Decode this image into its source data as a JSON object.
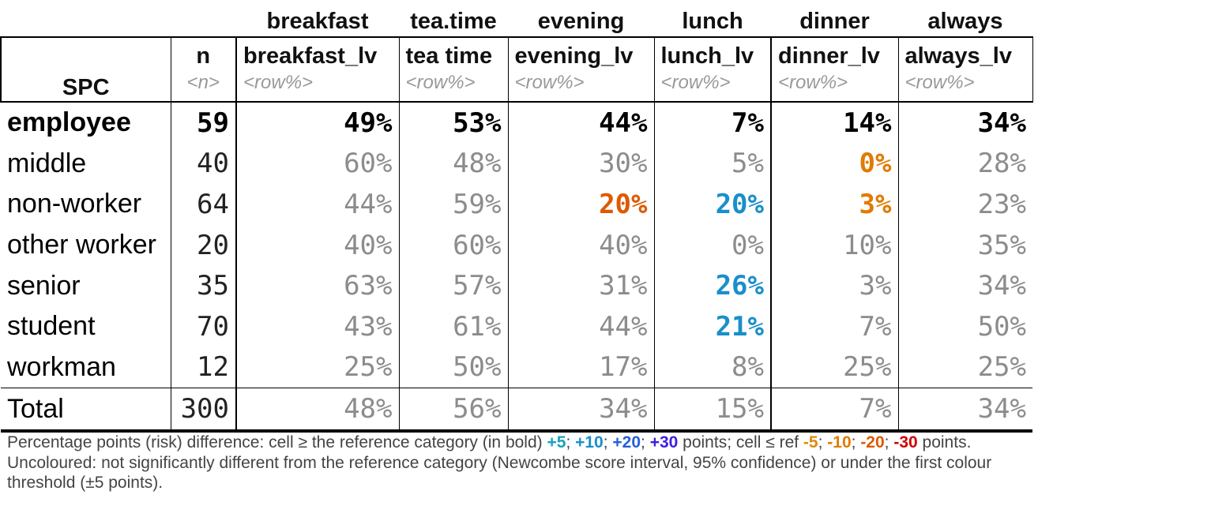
{
  "spanners": [
    "breakfast",
    "tea.time",
    "evening",
    "lunch",
    "dinner",
    "always"
  ],
  "headers": {
    "row_var": "SPC",
    "n_title": "n",
    "n_sub": "<n>",
    "cols": [
      {
        "title": "breakfast_lv",
        "sub": "<row%>"
      },
      {
        "title": "tea time",
        "sub": "<row%>"
      },
      {
        "title": "evening_lv",
        "sub": "<row%>"
      },
      {
        "title": "lunch_lv",
        "sub": "<row%>"
      },
      {
        "title": "dinner_lv",
        "sub": "<row%>"
      },
      {
        "title": "always_lv",
        "sub": "<row%>"
      }
    ]
  },
  "rows": [
    {
      "label": "employee",
      "n": "59",
      "cells": [
        "49%",
        "53%",
        "44%",
        "7%",
        "14%",
        "34%"
      ],
      "styles": [
        "ref",
        "ref",
        "ref",
        "ref",
        "ref",
        "ref"
      ],
      "ref": true
    },
    {
      "label": "middle",
      "n": "40",
      "cells": [
        "60%",
        "48%",
        "30%",
        "5%",
        "0%",
        "28%"
      ],
      "styles": [
        "grey",
        "grey",
        "grey",
        "grey",
        "m10",
        "grey"
      ]
    },
    {
      "label": "non-worker",
      "n": "64",
      "cells": [
        "44%",
        "59%",
        "20%",
        "20%",
        "3%",
        "23%"
      ],
      "styles": [
        "grey",
        "grey",
        "m20",
        "p10",
        "m10",
        "grey"
      ]
    },
    {
      "label": "other worker",
      "n": "20",
      "cells": [
        "40%",
        "60%",
        "40%",
        "0%",
        "10%",
        "35%"
      ],
      "styles": [
        "grey",
        "grey",
        "grey",
        "grey",
        "grey",
        "grey"
      ]
    },
    {
      "label": "senior",
      "n": "35",
      "cells": [
        "63%",
        "57%",
        "31%",
        "26%",
        "3%",
        "34%"
      ],
      "styles": [
        "grey",
        "grey",
        "grey",
        "p10",
        "grey",
        "grey"
      ]
    },
    {
      "label": "student",
      "n": "70",
      "cells": [
        "43%",
        "61%",
        "44%",
        "21%",
        "7%",
        "50%"
      ],
      "styles": [
        "grey",
        "grey",
        "grey",
        "p10",
        "grey",
        "grey"
      ]
    },
    {
      "label": "workman",
      "n": "12",
      "cells": [
        "25%",
        "50%",
        "17%",
        "8%",
        "25%",
        "25%"
      ],
      "styles": [
        "grey",
        "grey",
        "grey",
        "grey",
        "grey",
        "grey"
      ]
    }
  ],
  "total": {
    "label": "Total",
    "n": "300",
    "cells": [
      "48%",
      "56%",
      "34%",
      "15%",
      "7%",
      "34%"
    ]
  },
  "note": {
    "part1": "Percentage points (risk) difference: cell ≥ the reference category (in bold) ",
    "p5": "+5",
    "p10": "+10",
    "p20": "+20",
    "p30": "+30",
    "part2": " points; cell ≤ ref ",
    "m5": "-5",
    "m10": "-10",
    "m20": "-20",
    "m30": "-30",
    "part3": " points. Uncoloured: not significantly different from the reference category (Newcombe score interval, 95% confidence) or under the first colour threshold (±5 points).",
    "sep": "; "
  },
  "colors": {
    "grey": "#8c8c8c",
    "p5": "#17a2b8",
    "p10": "#1a8fc9",
    "p20": "#2460d6",
    "p30": "#3d1ee0",
    "m5": "#e08a0b",
    "m10": "#e07b00",
    "m20": "#dd5a00",
    "m30": "#d00000"
  }
}
